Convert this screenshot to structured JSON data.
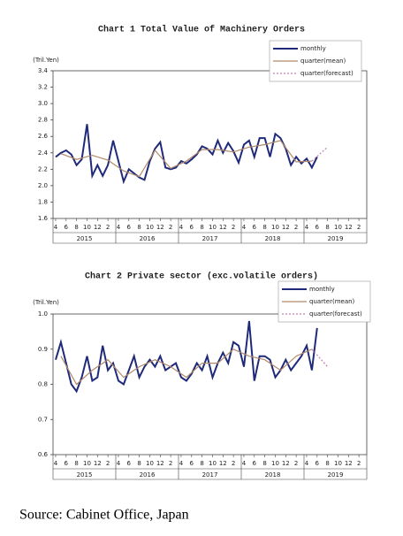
{
  "chart_data": [
    {
      "type": "line",
      "title": "Chart 1 Total Value of Machinery Orders",
      "y_label": "(Tril.Yen)",
      "xlim": [
        "2015-04",
        "2020-03"
      ],
      "xticks": [
        {
          "value": "2015-04",
          "label": "4"
        },
        {
          "value": "2015-06",
          "label": "6"
        },
        {
          "value": "2015-08",
          "label": "8"
        },
        {
          "value": "2015-10",
          "label": "10"
        },
        {
          "value": "2015-12",
          "label": "12"
        },
        {
          "value": "2016-02",
          "label": "2"
        },
        {
          "value": "2016-04",
          "label": "4"
        },
        {
          "value": "2016-06",
          "label": "6"
        },
        {
          "value": "2016-08",
          "label": "8"
        },
        {
          "value": "2016-10",
          "label": "10"
        },
        {
          "value": "2016-12",
          "label": "12"
        },
        {
          "value": "2017-02",
          "label": "2"
        },
        {
          "value": "2017-04",
          "label": "4"
        },
        {
          "value": "2017-06",
          "label": "6"
        },
        {
          "value": "2017-08",
          "label": "8"
        },
        {
          "value": "2017-10",
          "label": "10"
        },
        {
          "value": "2017-12",
          "label": "12"
        },
        {
          "value": "2018-02",
          "label": "2"
        },
        {
          "value": "2018-04",
          "label": "4"
        },
        {
          "value": "2018-06",
          "label": "6"
        },
        {
          "value": "2018-08",
          "label": "8"
        },
        {
          "value": "2018-10",
          "label": "10"
        },
        {
          "value": "2018-12",
          "label": "12"
        },
        {
          "value": "2019-02",
          "label": "2"
        },
        {
          "value": "2019-04",
          "label": "4"
        },
        {
          "value": "2019-06",
          "label": "6"
        },
        {
          "value": "2019-08",
          "label": "8"
        },
        {
          "value": "2019-10",
          "label": "10"
        },
        {
          "value": "2019-12",
          "label": "12"
        },
        {
          "value": "2020-02",
          "label": "2"
        }
      ],
      "years": [
        "2015",
        "2016",
        "2017",
        "2018",
        "2019"
      ],
      "ylim": [
        1.6,
        3.4
      ],
      "yticks": [
        1.6,
        1.8,
        {
          "value": 2,
          "label": "2.0"
        },
        2.2,
        2.4,
        2.6,
        2.8,
        {
          "value": 3,
          "label": "3.0"
        },
        3.2,
        3.4
      ],
      "legend": "upper right",
      "series": [
        {
          "name": "monthly",
          "color": "#1f2a7a",
          "style": "solid",
          "x": [
            "2015-04",
            "2015-05",
            "2015-06",
            "2015-07",
            "2015-08",
            "2015-09",
            "2015-10",
            "2015-11",
            "2015-12",
            "2016-01",
            "2016-02",
            "2016-03",
            "2016-04",
            "2016-05",
            "2016-06",
            "2016-07",
            "2016-08",
            "2016-09",
            "2016-10",
            "2016-11",
            "2016-12",
            "2017-01",
            "2017-02",
            "2017-03",
            "2017-04",
            "2017-05",
            "2017-06",
            "2017-07",
            "2017-08",
            "2017-09",
            "2017-10",
            "2017-11",
            "2017-12",
            "2018-01",
            "2018-02",
            "2018-03",
            "2018-04",
            "2018-05",
            "2018-06",
            "2018-07",
            "2018-08",
            "2018-09",
            "2018-10",
            "2018-11",
            "2018-12",
            "2019-01",
            "2019-02",
            "2019-03",
            "2019-04",
            "2019-05",
            "2019-06"
          ],
          "values": [
            2.35,
            2.4,
            2.43,
            2.38,
            2.25,
            2.32,
            2.75,
            2.12,
            2.25,
            2.12,
            2.25,
            2.55,
            2.3,
            2.05,
            2.2,
            2.15,
            2.1,
            2.07,
            2.3,
            2.45,
            2.53,
            2.22,
            2.2,
            2.22,
            2.3,
            2.27,
            2.32,
            2.38,
            2.48,
            2.45,
            2.38,
            2.55,
            2.4,
            2.52,
            2.42,
            2.28,
            2.5,
            2.55,
            2.35,
            2.58,
            2.58,
            2.35,
            2.63,
            2.58,
            2.45,
            2.25,
            2.35,
            2.27,
            2.33,
            2.22,
            2.35
          ]
        },
        {
          "name": "quarter(mean)",
          "color": "#b08a6a",
          "style": "solid",
          "x": [
            "2015-05",
            "2015-08",
            "2015-11",
            "2016-02",
            "2016-05",
            "2016-08",
            "2016-11",
            "2017-02",
            "2017-05",
            "2017-08",
            "2017-11",
            "2018-02",
            "2018-05",
            "2018-08",
            "2018-11",
            "2019-02",
            "2019-05"
          ],
          "values": [
            2.39,
            2.32,
            2.37,
            2.31,
            2.18,
            2.11,
            2.43,
            2.21,
            2.3,
            2.44,
            2.44,
            2.41,
            2.47,
            2.5,
            2.55,
            2.29,
            2.3
          ]
        },
        {
          "name": "quarter(forecast)",
          "color": "#c080b0",
          "style": "dotted",
          "x": [
            "2019-05",
            "2019-08"
          ],
          "values": [
            2.3,
            2.47
          ]
        }
      ]
    },
    {
      "type": "line",
      "title": "Chart 2 Private sector (exc.volatile orders)",
      "y_label": "(Tril.Yen)",
      "xlim": [
        "2015-04",
        "2020-03"
      ],
      "xticks": [
        {
          "value": "2015-04",
          "label": "4"
        },
        {
          "value": "2015-06",
          "label": "6"
        },
        {
          "value": "2015-08",
          "label": "8"
        },
        {
          "value": "2015-10",
          "label": "10"
        },
        {
          "value": "2015-12",
          "label": "12"
        },
        {
          "value": "2016-02",
          "label": "2"
        },
        {
          "value": "2016-04",
          "label": "4"
        },
        {
          "value": "2016-06",
          "label": "6"
        },
        {
          "value": "2016-08",
          "label": "8"
        },
        {
          "value": "2016-10",
          "label": "10"
        },
        {
          "value": "2016-12",
          "label": "12"
        },
        {
          "value": "2017-02",
          "label": "2"
        },
        {
          "value": "2017-04",
          "label": "4"
        },
        {
          "value": "2017-06",
          "label": "6"
        },
        {
          "value": "2017-08",
          "label": "8"
        },
        {
          "value": "2017-10",
          "label": "10"
        },
        {
          "value": "2017-12",
          "label": "12"
        },
        {
          "value": "2018-02",
          "label": "2"
        },
        {
          "value": "2018-04",
          "label": "4"
        },
        {
          "value": "2018-06",
          "label": "6"
        },
        {
          "value": "2018-08",
          "label": "8"
        },
        {
          "value": "2018-10",
          "label": "10"
        },
        {
          "value": "2018-12",
          "label": "12"
        },
        {
          "value": "2019-02",
          "label": "2"
        },
        {
          "value": "2019-04",
          "label": "4"
        },
        {
          "value": "2019-06",
          "label": "6"
        },
        {
          "value": "2019-08",
          "label": "8"
        },
        {
          "value": "2019-10",
          "label": "10"
        },
        {
          "value": "2019-12",
          "label": "12"
        },
        {
          "value": "2020-02",
          "label": "2"
        }
      ],
      "years": [
        "2015",
        "2016",
        "2017",
        "2018",
        "2019"
      ],
      "ylim": [
        0.6,
        1.0
      ],
      "yticks": [
        0.6,
        0.7,
        0.8,
        0.9,
        {
          "value": 1,
          "label": "1.0"
        }
      ],
      "legend": "upper right",
      "series": [
        {
          "name": "monthly",
          "color": "#1f2a7a",
          "style": "solid",
          "x": [
            "2015-04",
            "2015-05",
            "2015-06",
            "2015-07",
            "2015-08",
            "2015-09",
            "2015-10",
            "2015-11",
            "2015-12",
            "2016-01",
            "2016-02",
            "2016-03",
            "2016-04",
            "2016-05",
            "2016-06",
            "2016-07",
            "2016-08",
            "2016-09",
            "2016-10",
            "2016-11",
            "2016-12",
            "2017-01",
            "2017-02",
            "2017-03",
            "2017-04",
            "2017-05",
            "2017-06",
            "2017-07",
            "2017-08",
            "2017-09",
            "2017-10",
            "2017-11",
            "2017-12",
            "2018-01",
            "2018-02",
            "2018-03",
            "2018-04",
            "2018-05",
            "2018-06",
            "2018-07",
            "2018-08",
            "2018-09",
            "2018-10",
            "2018-11",
            "2018-12",
            "2019-01",
            "2019-02",
            "2019-03",
            "2019-04",
            "2019-05",
            "2019-06"
          ],
          "values": [
            0.87,
            0.92,
            0.86,
            0.8,
            0.78,
            0.82,
            0.88,
            0.81,
            0.82,
            0.91,
            0.84,
            0.86,
            0.81,
            0.8,
            0.84,
            0.88,
            0.82,
            0.85,
            0.87,
            0.85,
            0.88,
            0.84,
            0.85,
            0.86,
            0.82,
            0.81,
            0.83,
            0.86,
            0.84,
            0.88,
            0.82,
            0.86,
            0.89,
            0.86,
            0.92,
            0.91,
            0.85,
            0.98,
            0.81,
            0.88,
            0.88,
            0.87,
            0.82,
            0.84,
            0.87,
            0.84,
            0.86,
            0.88,
            0.91,
            0.84,
            0.96
          ]
        },
        {
          "name": "quarter(mean)",
          "color": "#b08a6a",
          "style": "solid",
          "x": [
            "2015-05",
            "2015-08",
            "2015-11",
            "2016-02",
            "2016-05",
            "2016-08",
            "2016-11",
            "2017-02",
            "2017-05",
            "2017-08",
            "2017-11",
            "2018-02",
            "2018-05",
            "2018-08",
            "2018-11",
            "2019-02",
            "2019-05"
          ],
          "values": [
            0.88,
            0.8,
            0.84,
            0.87,
            0.82,
            0.85,
            0.87,
            0.85,
            0.82,
            0.86,
            0.86,
            0.9,
            0.88,
            0.87,
            0.84,
            0.88,
            0.9
          ]
        },
        {
          "name": "quarter(forecast)",
          "color": "#c080b0",
          "style": "dotted",
          "x": [
            "2019-05",
            "2019-08"
          ],
          "values": [
            0.9,
            0.85
          ]
        }
      ]
    }
  ],
  "source": "Source: Cabinet Office, Japan"
}
